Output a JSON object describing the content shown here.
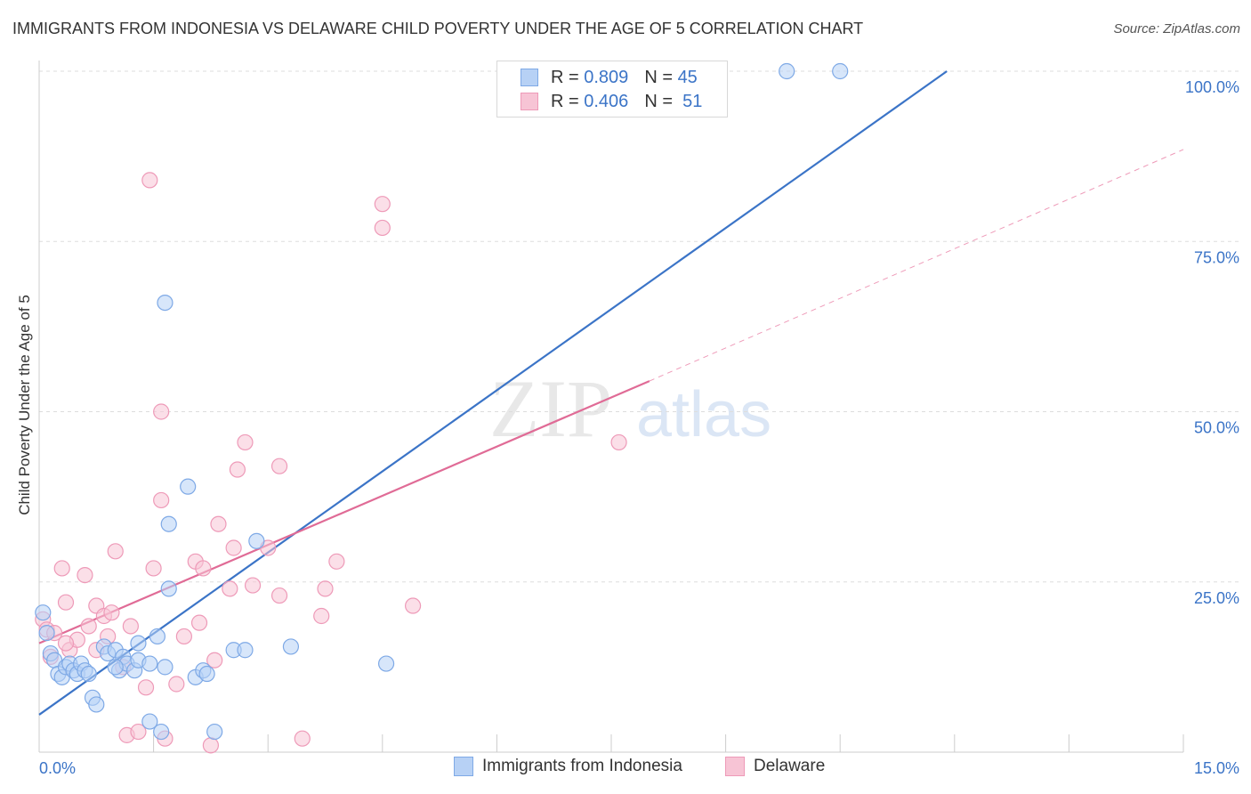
{
  "header": {
    "title": "IMMIGRANTS FROM INDONESIA VS DELAWARE CHILD POVERTY UNDER THE AGE OF 5 CORRELATION CHART",
    "source": "Source: ZipAtlas.com"
  },
  "legend": {
    "rows": [
      {
        "r_label": "R =",
        "r_value": "0.809",
        "n_label": "N =",
        "n_value": "45"
      },
      {
        "r_label": "R =",
        "r_value": "0.406",
        "n_label": "N =",
        "n_value": "51"
      }
    ]
  },
  "bottom_legend": {
    "items": [
      "Immigrants from Indonesia",
      "Delaware"
    ]
  },
  "watermark": {
    "zip": "ZIP",
    "atlas": "atlas"
  },
  "colors": {
    "blue": "#3b74c7",
    "blue_fill": "#b7d1f5",
    "blue_stroke": "#7ea9e6",
    "pink": "#e06b96",
    "pink_fill": "#f7c4d5",
    "pink_stroke": "#ee9ab8",
    "grid": "#dddddd",
    "tick_label": "#3b74c7"
  },
  "chart_data": {
    "type": "scatter",
    "title": "IMMIGRANTS FROM INDONESIA VS DELAWARE CHILD POVERTY UNDER THE AGE OF 5 CORRELATION CHART",
    "xlabel": "",
    "ylabel": "Child Poverty Under the Age of 5",
    "xlim": [
      0,
      15
    ],
    "ylim": [
      0,
      100
    ],
    "x_tick_labels": [
      "0.0%",
      "15.0%"
    ],
    "y_ticks": [
      25,
      50,
      75,
      100
    ],
    "y_tick_labels": [
      "25.0%",
      "50.0%",
      "75.0%",
      "100.0%"
    ],
    "grid": true,
    "legend_position": "top-center",
    "series": [
      {
        "name": "Immigrants from Indonesia",
        "r": 0.809,
        "n": 45,
        "points": [
          [
            0.05,
            20.5
          ],
          [
            0.1,
            17.5
          ],
          [
            0.15,
            14.5
          ],
          [
            0.2,
            13.5
          ],
          [
            0.25,
            11.5
          ],
          [
            0.3,
            11.0
          ],
          [
            0.35,
            12.5
          ],
          [
            0.4,
            13.0
          ],
          [
            0.45,
            12.0
          ],
          [
            0.5,
            11.5
          ],
          [
            0.55,
            13.0
          ],
          [
            0.6,
            12.0
          ],
          [
            0.7,
            8.0
          ],
          [
            0.75,
            7.0
          ],
          [
            0.85,
            15.5
          ],
          [
            0.9,
            14.5
          ],
          [
            1.0,
            15.0
          ],
          [
            1.05,
            12.0
          ],
          [
            1.1,
            14.0
          ],
          [
            1.15,
            13.0
          ],
          [
            1.25,
            12.0
          ],
          [
            1.3,
            13.5
          ],
          [
            1.45,
            13.0
          ],
          [
            1.65,
            12.5
          ],
          [
            1.0,
            12.5
          ],
          [
            1.3,
            16.0
          ],
          [
            1.45,
            4.5
          ],
          [
            1.6,
            3.0
          ],
          [
            1.55,
            17.0
          ],
          [
            1.65,
            66.0
          ],
          [
            1.7,
            33.5
          ],
          [
            1.7,
            24.0
          ],
          [
            1.95,
            39.0
          ],
          [
            2.05,
            11.0
          ],
          [
            2.15,
            12.0
          ],
          [
            2.2,
            11.5
          ],
          [
            2.3,
            3.0
          ],
          [
            2.55,
            15.0
          ],
          [
            2.7,
            15.0
          ],
          [
            2.85,
            31.0
          ],
          [
            3.3,
            15.5
          ],
          [
            4.55,
            13.0
          ],
          [
            9.8,
            100.0
          ],
          [
            10.5,
            100.0
          ],
          [
            0.65,
            11.5
          ]
        ],
        "trend": [
          [
            0,
            5.5
          ],
          [
            11.9,
            100
          ]
        ]
      },
      {
        "name": "Delaware",
        "r": 0.406,
        "n": 51,
        "points": [
          [
            0.05,
            19.5
          ],
          [
            0.1,
            18.0
          ],
          [
            0.2,
            17.5
          ],
          [
            0.3,
            27.0
          ],
          [
            0.35,
            22.0
          ],
          [
            0.4,
            15.0
          ],
          [
            0.5,
            16.5
          ],
          [
            0.6,
            26.0
          ],
          [
            0.65,
            18.5
          ],
          [
            0.75,
            15.0
          ],
          [
            0.75,
            21.5
          ],
          [
            0.85,
            20.0
          ],
          [
            0.9,
            17.0
          ],
          [
            0.95,
            20.5
          ],
          [
            1.0,
            29.5
          ],
          [
            1.1,
            12.5
          ],
          [
            1.2,
            18.5
          ],
          [
            1.15,
            2.5
          ],
          [
            1.3,
            3.0
          ],
          [
            1.4,
            9.5
          ],
          [
            1.45,
            84.0
          ],
          [
            1.5,
            27.0
          ],
          [
            1.6,
            50.0
          ],
          [
            1.6,
            37.0
          ],
          [
            1.65,
            2.0
          ],
          [
            1.8,
            10.0
          ],
          [
            1.9,
            17.0
          ],
          [
            2.05,
            28.0
          ],
          [
            2.1,
            19.0
          ],
          [
            2.15,
            27.0
          ],
          [
            2.25,
            1.0
          ],
          [
            2.3,
            13.5
          ],
          [
            2.35,
            33.5
          ],
          [
            2.5,
            24.0
          ],
          [
            2.55,
            30.0
          ],
          [
            2.6,
            41.5
          ],
          [
            2.7,
            45.5
          ],
          [
            2.8,
            24.5
          ],
          [
            3.0,
            30.0
          ],
          [
            3.15,
            42.0
          ],
          [
            3.15,
            23.0
          ],
          [
            3.45,
            2.0
          ],
          [
            3.7,
            20.0
          ],
          [
            3.75,
            24.0
          ],
          [
            3.9,
            28.0
          ],
          [
            4.5,
            80.5
          ],
          [
            4.5,
            77.0
          ],
          [
            4.9,
            21.5
          ],
          [
            7.6,
            45.5
          ],
          [
            0.15,
            14.0
          ],
          [
            0.35,
            16.0
          ]
        ],
        "trend": [
          [
            0,
            16.0
          ],
          [
            8.0,
            54.5
          ]
        ],
        "trend_extension": [
          [
            8.0,
            54.5
          ],
          [
            15.0,
            88.5
          ]
        ]
      }
    ]
  }
}
